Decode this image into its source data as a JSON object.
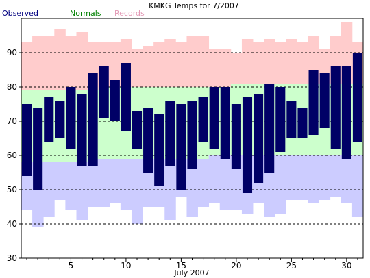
{
  "chart_data": {
    "type": "bar",
    "title": "KMKG Temps for 7/2007",
    "xlabel": "July 2007",
    "ylabel": "",
    "ylim": [
      30,
      100
    ],
    "xlim": [
      0.5,
      31.5
    ],
    "y_ticks": [
      30,
      40,
      50,
      60,
      70,
      80,
      90
    ],
    "x_ticks": [
      5,
      10,
      15,
      20,
      25,
      30
    ],
    "grid": "dashed horizontal at 40, 50, 60, 70, 80, 90",
    "legend": {
      "placement": "top-left",
      "entries": [
        {
          "name": "Observed",
          "color": "#000080"
        },
        {
          "name": "Normals",
          "color": "#008000"
        },
        {
          "name": "Records",
          "color": "#e399b5"
        }
      ]
    },
    "colors": {
      "observed": "#000066",
      "normals_fill": "#ccffcc",
      "records_high_fill": "#ffcccc",
      "records_low_fill": "#ccccff"
    },
    "days": [
      1,
      2,
      3,
      4,
      5,
      6,
      7,
      8,
      9,
      10,
      11,
      12,
      13,
      14,
      15,
      16,
      17,
      18,
      19,
      20,
      21,
      22,
      23,
      24,
      25,
      26,
      27,
      28,
      29,
      30,
      31
    ],
    "series": [
      {
        "name": "Observed",
        "high": [
          75,
          74,
          77,
          76,
          80,
          78,
          84,
          86,
          82,
          87,
          73,
          74,
          72,
          76,
          75,
          76,
          77,
          80,
          80,
          75,
          77,
          78,
          81,
          80,
          76,
          74,
          85,
          84,
          86,
          86,
          90
        ],
        "low": [
          54,
          50,
          64,
          65,
          62,
          57,
          57,
          71,
          70,
          67,
          62,
          55,
          51,
          57,
          50,
          56,
          64,
          62,
          59,
          56,
          49,
          52,
          55,
          61,
          65,
          65,
          66,
          68,
          62,
          59,
          64
        ]
      },
      {
        "name": "Normals",
        "high": [
          79,
          79,
          79,
          79,
          79,
          79,
          79,
          80,
          80,
          80,
          80,
          80,
          80,
          80,
          80,
          80,
          80,
          80,
          80,
          81,
          81,
          81,
          81,
          81,
          81,
          81,
          81,
          81,
          81,
          81,
          81
        ],
        "low": [
          58,
          58,
          58,
          58,
          58,
          58,
          59,
          59,
          59,
          59,
          59,
          59,
          59,
          59,
          59,
          59,
          59,
          60,
          60,
          60,
          60,
          60,
          60,
          60,
          60,
          60,
          60,
          60,
          60,
          60,
          60
        ]
      },
      {
        "name": "Records",
        "high": [
          93,
          95,
          95,
          97,
          95,
          96,
          93,
          93,
          93,
          94,
          91,
          92,
          93,
          94,
          93,
          95,
          95,
          91,
          91,
          90,
          94,
          93,
          94,
          93,
          94,
          93,
          95,
          91,
          95,
          99,
          93
        ],
        "low": [
          44,
          39,
          42,
          47,
          44,
          41,
          45,
          45,
          46,
          44,
          40,
          45,
          45,
          41,
          48,
          42,
          45,
          46,
          44,
          44,
          43,
          46,
          42,
          43,
          47,
          47,
          46,
          47,
          48,
          46,
          42
        ]
      }
    ]
  }
}
